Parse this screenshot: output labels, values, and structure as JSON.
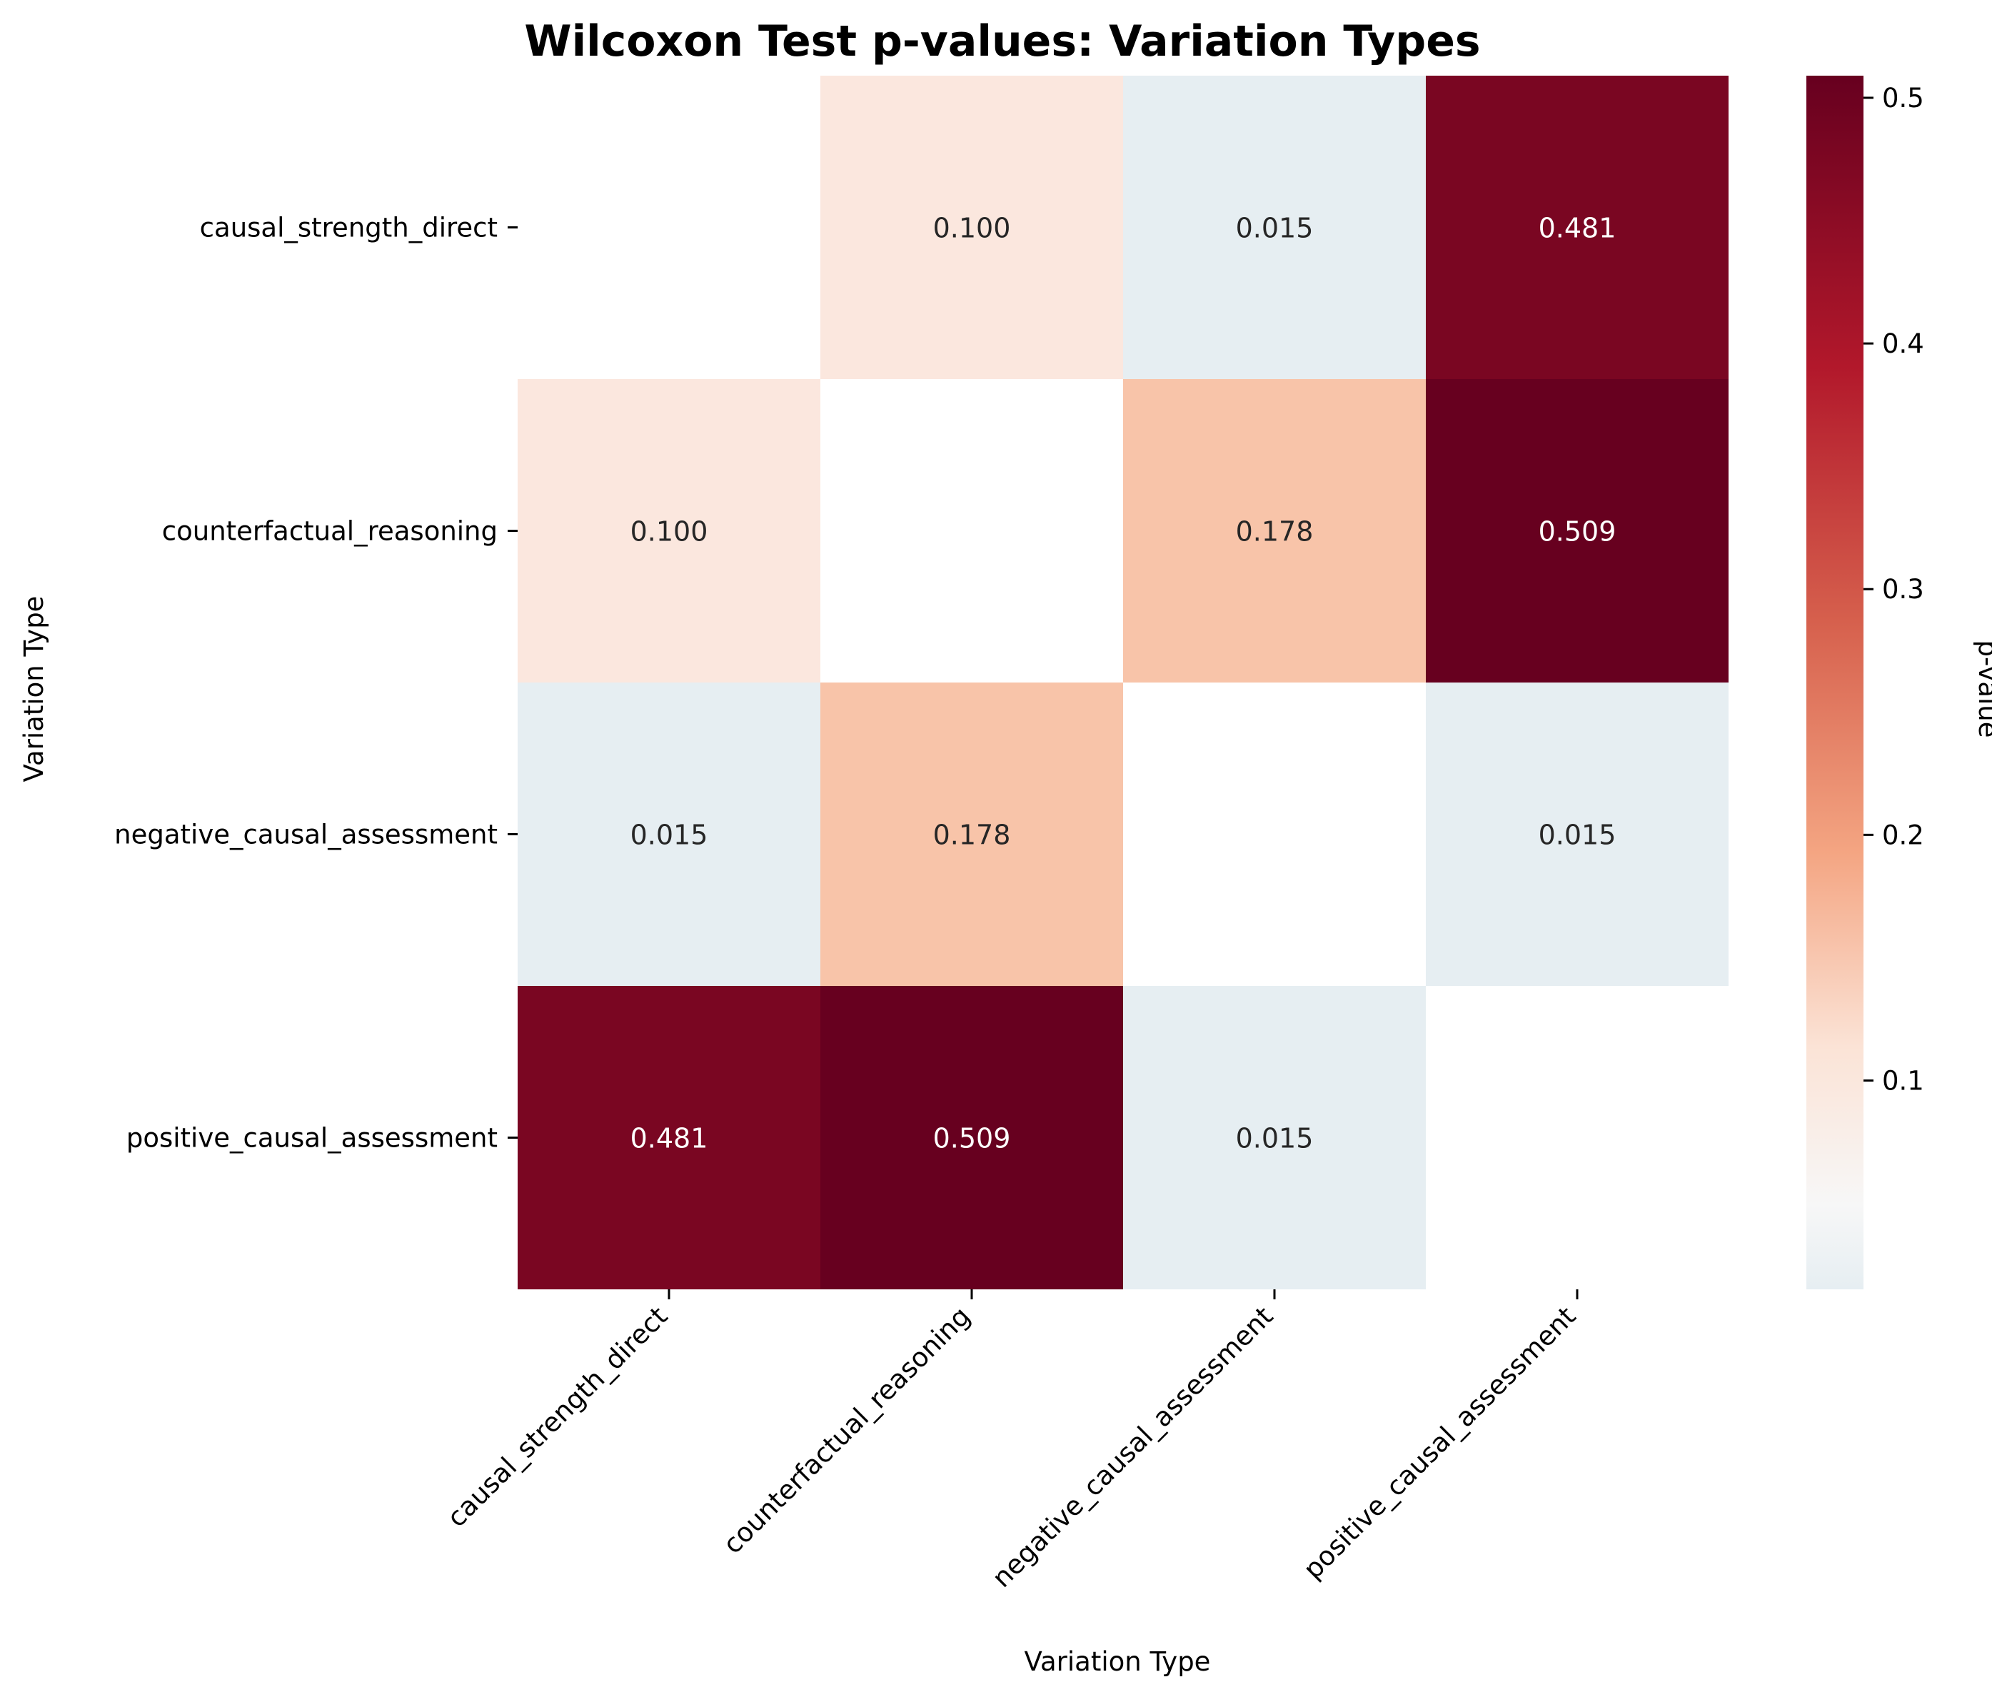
{
  "chart_data": {
    "type": "heatmap",
    "title": "Wilcoxon Test p-values: Variation Types",
    "xlabel": "Variation Type",
    "ylabel": "Variation Type",
    "x_categories": [
      "causal_strength_direct",
      "counterfactual_reasoning",
      "negative_causal_assessment",
      "positive_causal_assessment"
    ],
    "y_categories": [
      "causal_strength_direct",
      "counterfactual_reasoning",
      "negative_causal_assessment",
      "positive_causal_assessment"
    ],
    "values": [
      [
        null,
        0.1,
        0.015,
        0.481
      ],
      [
        0.1,
        null,
        0.178,
        0.509
      ],
      [
        0.015,
        0.178,
        null,
        0.015
      ],
      [
        0.481,
        0.509,
        0.015,
        null
      ]
    ],
    "cell_labels": [
      [
        "",
        "0.100",
        "0.015",
        "0.481"
      ],
      [
        "0.100",
        "",
        "0.178",
        "0.509"
      ],
      [
        "0.015",
        "0.178",
        "",
        "0.015"
      ],
      [
        "0.481",
        "0.509",
        "0.015",
        ""
      ]
    ],
    "colorbar": {
      "label": "p-value",
      "range": [
        0.015,
        0.509
      ],
      "ticks": [
        0.1,
        0.2,
        0.3,
        0.4,
        0.5
      ],
      "tick_labels": [
        "0.1",
        "0.2",
        "0.3",
        "0.4",
        "0.5"
      ],
      "colormap": "RdBu_r",
      "center": 0.05
    }
  }
}
